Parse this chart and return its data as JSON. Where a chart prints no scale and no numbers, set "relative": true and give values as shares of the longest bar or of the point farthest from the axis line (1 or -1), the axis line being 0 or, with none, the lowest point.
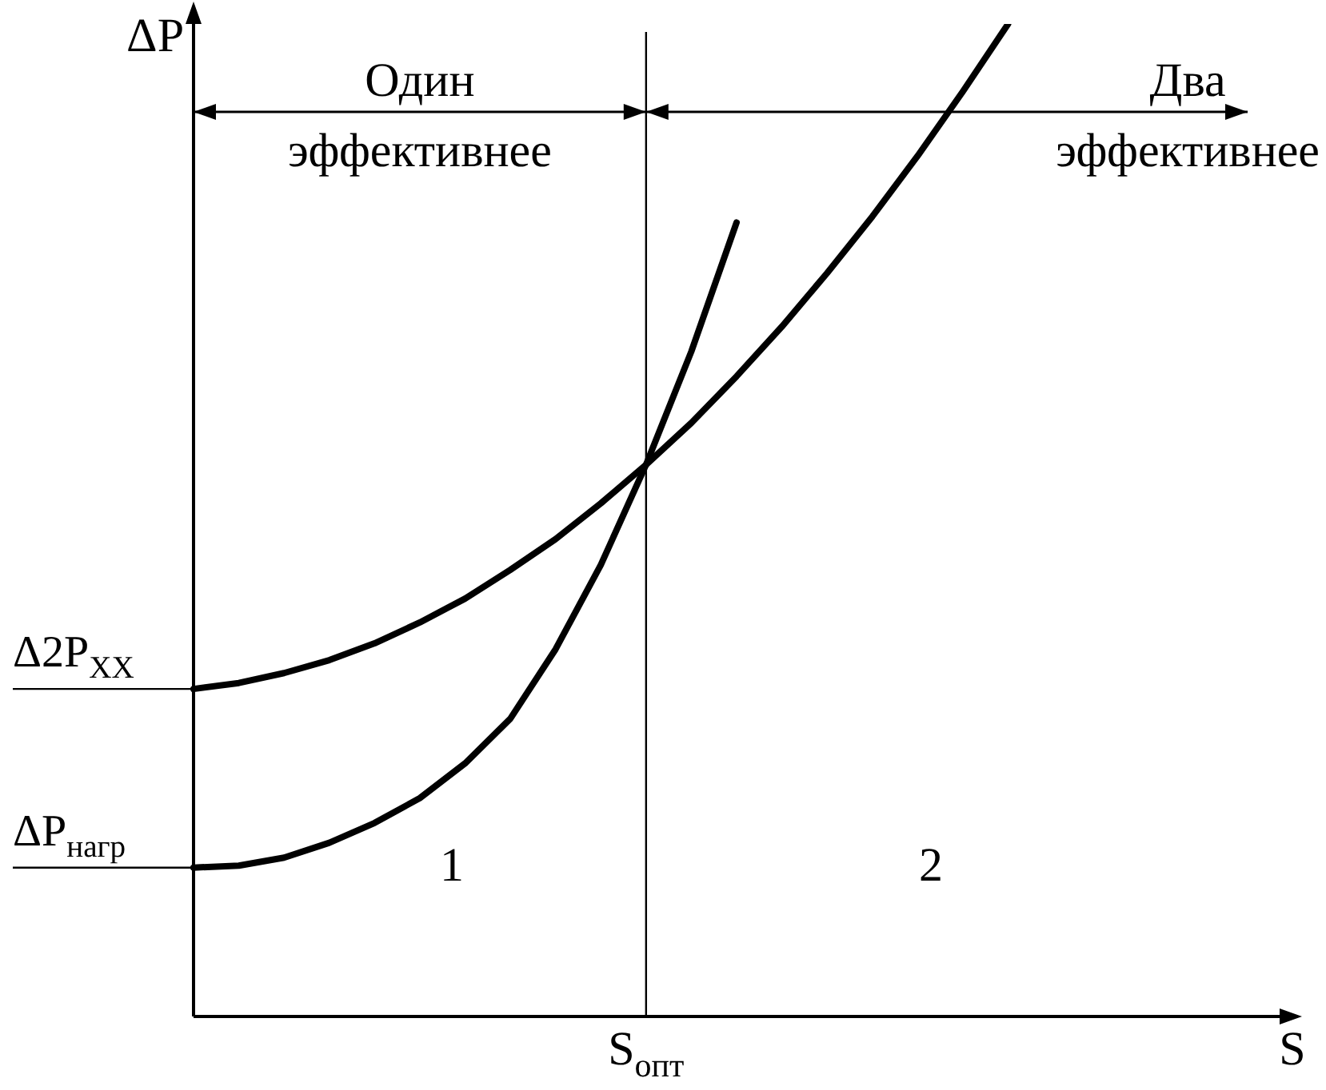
{
  "chart_data": {
    "type": "line",
    "relative": true,
    "xlabel": "S",
    "ylabel": "ΔP",
    "marker": "none",
    "categories": [
      null,
      null,
      null,
      null,
      null,
      null,
      null,
      null,
      null,
      null,
      null,
      null,
      null,
      null,
      null,
      null,
      null,
      null,
      null,
      null,
      null,
      null,
      null,
      null,
      null
    ],
    "series": [
      {
        "color": "#000000",
        "values": [
          0.15,
          0.152,
          0.16,
          0.175,
          0.195,
          0.22,
          0.255,
          0.3,
          0.37,
          0.455,
          0.556,
          0.67,
          0.8,
          null,
          null,
          null,
          null,
          null,
          null,
          null,
          null,
          null,
          null,
          null,
          null
        ]
      },
      {
        "color": "#000000",
        "values": [
          0.33,
          0.336,
          0.346,
          0.359,
          0.376,
          0.397,
          0.421,
          0.45,
          0.481,
          0.517,
          0.556,
          0.598,
          0.645,
          0.695,
          0.749,
          0.806,
          0.867,
          0.932,
          1,
          null,
          null,
          null,
          null,
          null,
          null
        ]
      }
    ],
    "ref_lines": [
      {
        "axis": "x",
        "label": "S$_{опт}$",
        "color": "#000000"
      }
    ],
    "annotations": [
      "ΔP$_{нагр}$",
      "Δ2P$_{XX}$",
      "Один эффективнее",
      "Два эффективнее",
      "1",
      "2"
    ]
  }
}
